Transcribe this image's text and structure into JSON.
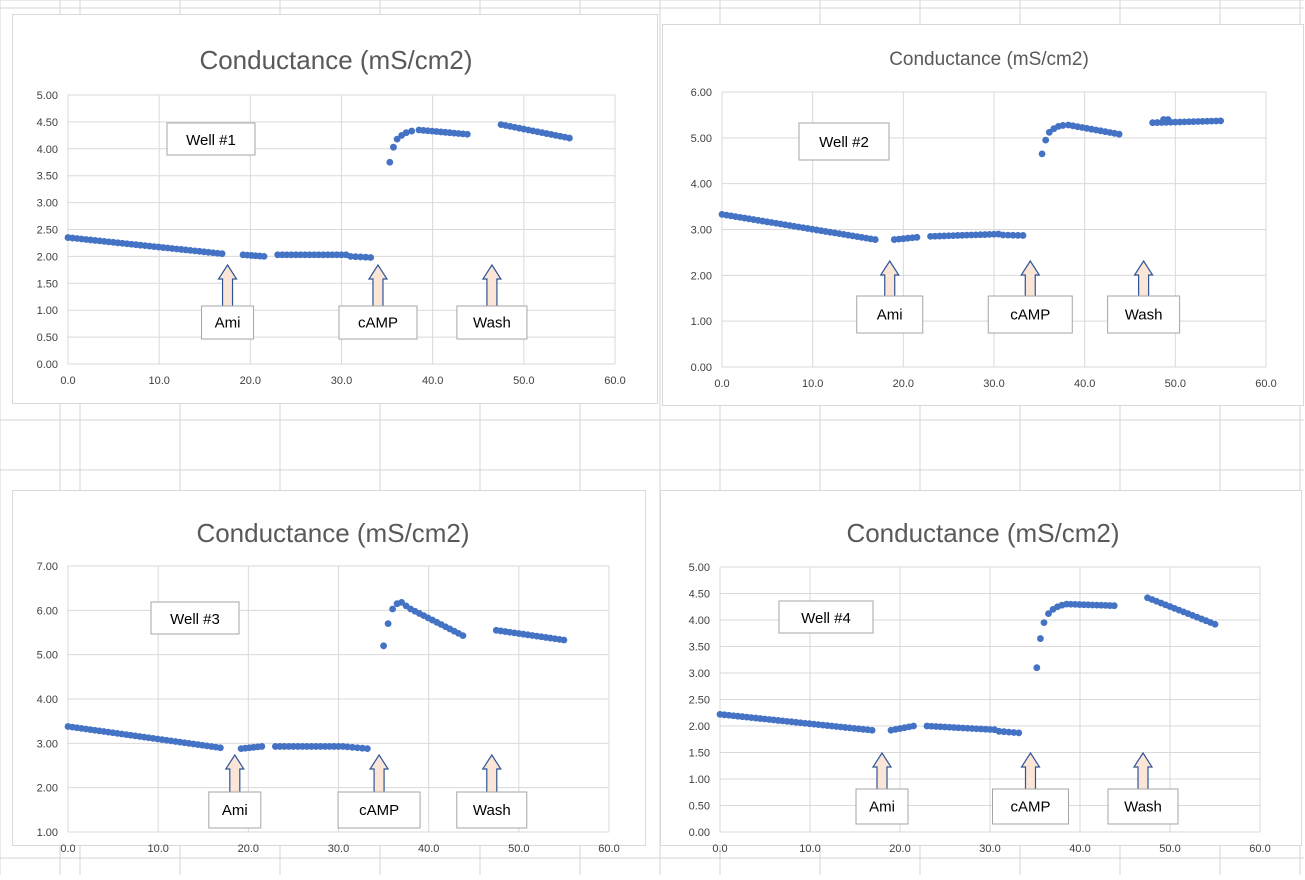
{
  "colors": {
    "marker": "#4472c4",
    "grid": "#d9d9d9",
    "axis_text": "#404040",
    "title_text": "#595959",
    "arrow_fill": "#fbe5d6",
    "arrow_stroke": "#2f5597",
    "sheet_lines": "#d4d4d4"
  },
  "icons": {
    "annotation_arrow": "up-arrow-icon"
  },
  "chart_data": [
    {
      "type": "scatter",
      "title": "Conductance (mS/cm2)",
      "well_label": "Well #1",
      "xlabel": "",
      "ylabel": "",
      "xlim": [
        0,
        60
      ],
      "ylim": [
        0,
        5
      ],
      "x_ticks": [
        "0.0",
        "10.0",
        "20.0",
        "30.0",
        "40.0",
        "50.0",
        "60.0"
      ],
      "y_ticks": [
        "0.00",
        "0.50",
        "1.00",
        "1.50",
        "2.00",
        "2.50",
        "3.00",
        "3.50",
        "4.00",
        "4.50",
        "5.00"
      ],
      "grid": true,
      "annotations": [
        {
          "label": "Ami",
          "x": 17.5
        },
        {
          "label": "cAMP",
          "x": 34.0
        },
        {
          "label": "Wash",
          "x": 46.5
        }
      ],
      "segments": [
        {
          "x_start": 0.0,
          "x_end": 16.9,
          "y_start": 2.35,
          "y_end": 2.05
        },
        {
          "x_start": 19.2,
          "x_end": 21.5,
          "y_start": 2.03,
          "y_end": 2.0
        },
        {
          "x_start": 23.0,
          "x_end": 30.5,
          "y_start": 2.03,
          "y_end": 2.03
        },
        {
          "x_start": 31.0,
          "x_end": 33.2,
          "y_start": 2.0,
          "y_end": 1.98
        },
        {
          "x_start": 38.5,
          "x_end": 43.8,
          "y_start": 4.35,
          "y_end": 4.27
        },
        {
          "x_start": 47.5,
          "x_end": 55.0,
          "y_start": 4.45,
          "y_end": 4.2
        }
      ],
      "points": [
        [
          35.3,
          3.75
        ],
        [
          35.7,
          4.03
        ],
        [
          36.1,
          4.18
        ],
        [
          36.6,
          4.25
        ],
        [
          37.1,
          4.3
        ],
        [
          37.7,
          4.33
        ]
      ]
    },
    {
      "type": "scatter",
      "title": "Conductance (mS/cm2)",
      "well_label": "Well #2",
      "xlabel": "",
      "ylabel": "",
      "xlim": [
        0,
        60
      ],
      "ylim": [
        0,
        6
      ],
      "x_ticks": [
        "0.0",
        "10.0",
        "20.0",
        "30.0",
        "40.0",
        "50.0",
        "60.0"
      ],
      "y_ticks": [
        "0.00",
        "1.00",
        "2.00",
        "3.00",
        "4.00",
        "5.00",
        "6.00"
      ],
      "grid": true,
      "annotations": [
        {
          "label": "Ami",
          "x": 18.5
        },
        {
          "label": "cAMP",
          "x": 34.0
        },
        {
          "label": "Wash",
          "x": 46.5
        }
      ],
      "segments": [
        {
          "x_start": 0.0,
          "x_end": 16.9,
          "y_start": 3.33,
          "y_end": 2.78
        },
        {
          "x_start": 19.0,
          "x_end": 21.5,
          "y_start": 2.78,
          "y_end": 2.83
        },
        {
          "x_start": 23.0,
          "x_end": 30.5,
          "y_start": 2.85,
          "y_end": 2.9
        },
        {
          "x_start": 31.0,
          "x_end": 33.2,
          "y_start": 2.88,
          "y_end": 2.87
        },
        {
          "x_start": 38.2,
          "x_end": 43.8,
          "y_start": 5.28,
          "y_end": 5.08
        },
        {
          "x_start": 47.5,
          "x_end": 55.0,
          "y_start": 5.33,
          "y_end": 5.37
        }
      ],
      "points": [
        [
          35.3,
          4.65
        ],
        [
          35.7,
          4.95
        ],
        [
          36.1,
          5.12
        ],
        [
          36.6,
          5.2
        ],
        [
          37.1,
          5.25
        ],
        [
          37.6,
          5.27
        ],
        [
          48.7,
          5.4
        ],
        [
          49.2,
          5.4
        ]
      ]
    },
    {
      "type": "scatter",
      "title": "Conductance (mS/cm2)",
      "well_label": "Well #3",
      "xlabel": "",
      "ylabel": "",
      "xlim": [
        0,
        60
      ],
      "ylim": [
        1,
        7
      ],
      "x_ticks": [
        "0.0",
        "10.0",
        "20.0",
        "30.0",
        "40.0",
        "50.0",
        "60.0"
      ],
      "y_ticks": [
        "1.00",
        "2.00",
        "3.00",
        "4.00",
        "5.00",
        "6.00",
        "7.00"
      ],
      "grid": true,
      "annotations": [
        {
          "label": "Ami",
          "x": 18.5
        },
        {
          "label": "cAMP",
          "x": 34.5
        },
        {
          "label": "Wash",
          "x": 47.0
        }
      ],
      "segments": [
        {
          "x_start": 0.0,
          "x_end": 16.9,
          "y_start": 3.38,
          "y_end": 2.9
        },
        {
          "x_start": 19.2,
          "x_end": 21.5,
          "y_start": 2.88,
          "y_end": 2.93
        },
        {
          "x_start": 23.0,
          "x_end": 30.5,
          "y_start": 2.93,
          "y_end": 2.93
        },
        {
          "x_start": 31.0,
          "x_end": 33.2,
          "y_start": 2.92,
          "y_end": 2.88
        },
        {
          "x_start": 38.0,
          "x_end": 43.8,
          "y_start": 6.03,
          "y_end": 5.43
        },
        {
          "x_start": 47.5,
          "x_end": 55.0,
          "y_start": 5.55,
          "y_end": 5.33
        }
      ],
      "points": [
        [
          35.0,
          5.2
        ],
        [
          35.5,
          5.7
        ],
        [
          36.0,
          6.03
        ],
        [
          36.5,
          6.15
        ],
        [
          37.0,
          6.18
        ],
        [
          37.5,
          6.1
        ]
      ]
    },
    {
      "type": "scatter",
      "title": "Conductance (mS/cm2)",
      "well_label": "Well #4",
      "xlabel": "",
      "ylabel": "",
      "xlim": [
        0,
        60
      ],
      "ylim": [
        0,
        5
      ],
      "x_ticks": [
        "0.0",
        "10.0",
        "20.0",
        "30.0",
        "40.0",
        "50.0",
        "60.0"
      ],
      "y_ticks": [
        "0.00",
        "0.50",
        "1.00",
        "1.50",
        "2.00",
        "2.50",
        "3.00",
        "3.50",
        "4.00",
        "4.50",
        "5.00"
      ],
      "grid": true,
      "annotations": [
        {
          "label": "Ami",
          "x": 18.0
        },
        {
          "label": "cAMP",
          "x": 34.5
        },
        {
          "label": "Wash",
          "x": 47.0
        }
      ],
      "segments": [
        {
          "x_start": 0.0,
          "x_end": 16.9,
          "y_start": 2.22,
          "y_end": 1.92
        },
        {
          "x_start": 19.0,
          "x_end": 21.5,
          "y_start": 1.92,
          "y_end": 2.0
        },
        {
          "x_start": 23.0,
          "x_end": 30.5,
          "y_start": 2.0,
          "y_end": 1.93
        },
        {
          "x_start": 31.0,
          "x_end": 33.2,
          "y_start": 1.9,
          "y_end": 1.87
        },
        {
          "x_start": 38.5,
          "x_end": 43.8,
          "y_start": 4.3,
          "y_end": 4.27
        },
        {
          "x_start": 47.5,
          "x_end": 55.0,
          "y_start": 4.42,
          "y_end": 3.92
        }
      ],
      "points": [
        [
          35.2,
          3.1
        ],
        [
          35.6,
          3.65
        ],
        [
          36.0,
          3.95
        ],
        [
          36.5,
          4.12
        ],
        [
          37.0,
          4.2
        ],
        [
          37.5,
          4.25
        ],
        [
          38.0,
          4.28
        ]
      ]
    }
  ]
}
